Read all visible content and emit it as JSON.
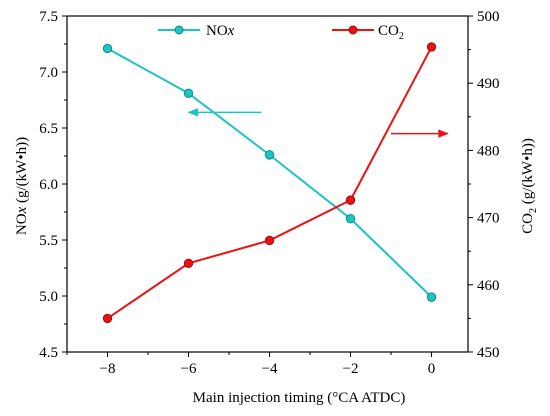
{
  "chart_data": {
    "type": "line",
    "xlabel": "Main injection timing (°CA ATDC)",
    "x": [
      -8,
      -6,
      -4,
      -2,
      0
    ],
    "xlim": [
      -9,
      0.9
    ],
    "xticks": [
      -8,
      -6,
      -4,
      -2,
      0
    ],
    "xtick_labels": [
      "−8",
      "−6",
      "−4",
      "−2",
      "0"
    ],
    "ylabel_left": {
      "pre": "NO",
      "ital": "x",
      "post": " (g/(kW•h))"
    },
    "ylim_left": [
      4.5,
      7.5
    ],
    "yticks_left": [
      "4.5",
      "5.0",
      "5.5",
      "6.0",
      "6.5",
      "7.0",
      "7.5"
    ],
    "ylabel_right": {
      "pre": "CO",
      "sub": "2",
      "post": " (g/(kW•h))"
    },
    "ylim_right": [
      450,
      500
    ],
    "yticks_right": [
      "450",
      "460",
      "470",
      "480",
      "490",
      "500"
    ],
    "series": [
      {
        "legend": {
          "pre": "NO",
          "ital": "x"
        },
        "axis": "left",
        "color": "#1cc4c4",
        "values": [
          7.21,
          6.81,
          6.26,
          5.69,
          4.99
        ]
      },
      {
        "legend": {
          "pre": "CO",
          "sub": "2"
        },
        "axis": "right",
        "color": "#ee1111",
        "values": [
          455.0,
          463.2,
          466.6,
          472.6,
          495.4
        ]
      }
    ],
    "legend_position": "top",
    "arrows": [
      {
        "series": 0,
        "direction": "left",
        "x_from": -4.2,
        "x_to": -6.0,
        "y": 6.64,
        "axis": "left"
      },
      {
        "series": 1,
        "direction": "right",
        "x_from": -1.0,
        "x_to": 0.4,
        "y": 482.5,
        "axis": "right"
      }
    ]
  }
}
